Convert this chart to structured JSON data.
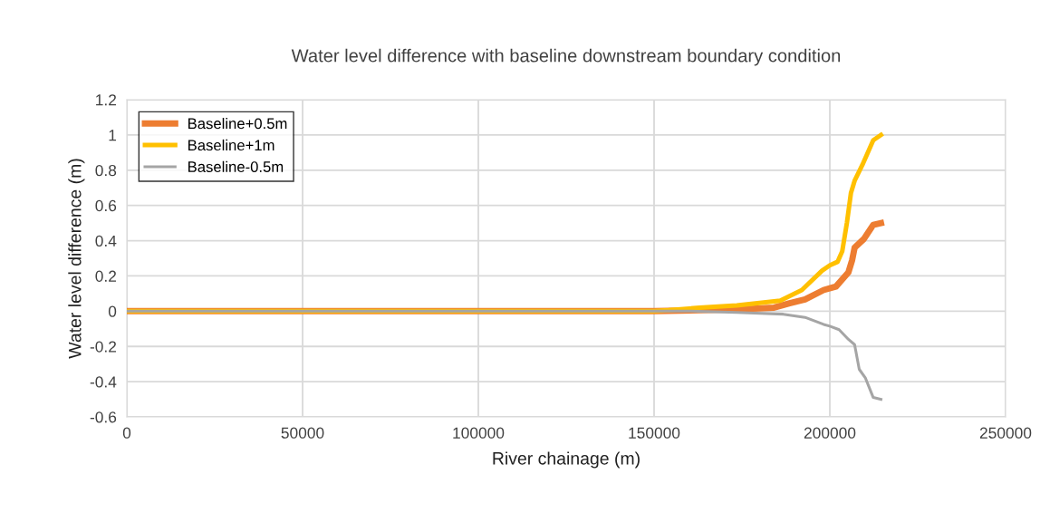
{
  "chart_data": {
    "type": "line",
    "title": "Water level difference with baseline downstream boundary condition",
    "xlabel": "River chainage (m)",
    "ylabel": "Water level difference (m)",
    "xlim": [
      0,
      250000
    ],
    "xticks": [
      0,
      50000,
      100000,
      150000,
      200000,
      250000
    ],
    "ylim": [
      -0.6,
      1.2
    ],
    "yticks": [
      -0.6,
      -0.4,
      -0.2,
      0,
      0.2,
      0.4,
      0.6,
      0.8,
      1,
      1.2
    ],
    "grid": true,
    "legend": "top left",
    "marker": "none",
    "line_style": "solid",
    "series": [
      {
        "name": "Baseline+0.5m",
        "color": "#ed7d31",
        "x": [
          0,
          150000,
          162960,
          173540,
          184130,
          188540,
          192950,
          198240,
          201760,
          205290,
          206350,
          207050,
          209700,
          212350,
          214550
        ],
        "values": [
          0,
          0,
          0.005,
          0.01,
          0.02,
          0.045,
          0.067,
          0.12,
          0.14,
          0.22,
          0.29,
          0.36,
          0.41,
          0.49,
          0.5
        ]
      },
      {
        "name": "Baseline+1m",
        "color": "#ffc000",
        "x": [
          0,
          150000,
          154150,
          162960,
          173540,
          185890,
          192060,
          197800,
          200000,
          202200,
          203530,
          204850,
          206000,
          207050,
          209260,
          211020,
          212350,
          214550
        ],
        "values": [
          0,
          0,
          0.005,
          0.02,
          0.033,
          0.06,
          0.12,
          0.23,
          0.26,
          0.28,
          0.34,
          0.5,
          0.67,
          0.74,
          0.83,
          0.91,
          0.97,
          1.0
        ]
      },
      {
        "name": "Baseline-0.5m",
        "color": "#a5a5a5",
        "x": [
          0,
          160320,
          173540,
          186770,
          192950,
          198240,
          200000,
          202640,
          205290,
          207050,
          208370,
          210140,
          212350,
          214550
        ],
        "values": [
          0,
          0,
          -0.007,
          -0.017,
          -0.035,
          -0.075,
          -0.085,
          -0.105,
          -0.16,
          -0.19,
          -0.33,
          -0.38,
          -0.49,
          -0.5
        ]
      }
    ]
  }
}
